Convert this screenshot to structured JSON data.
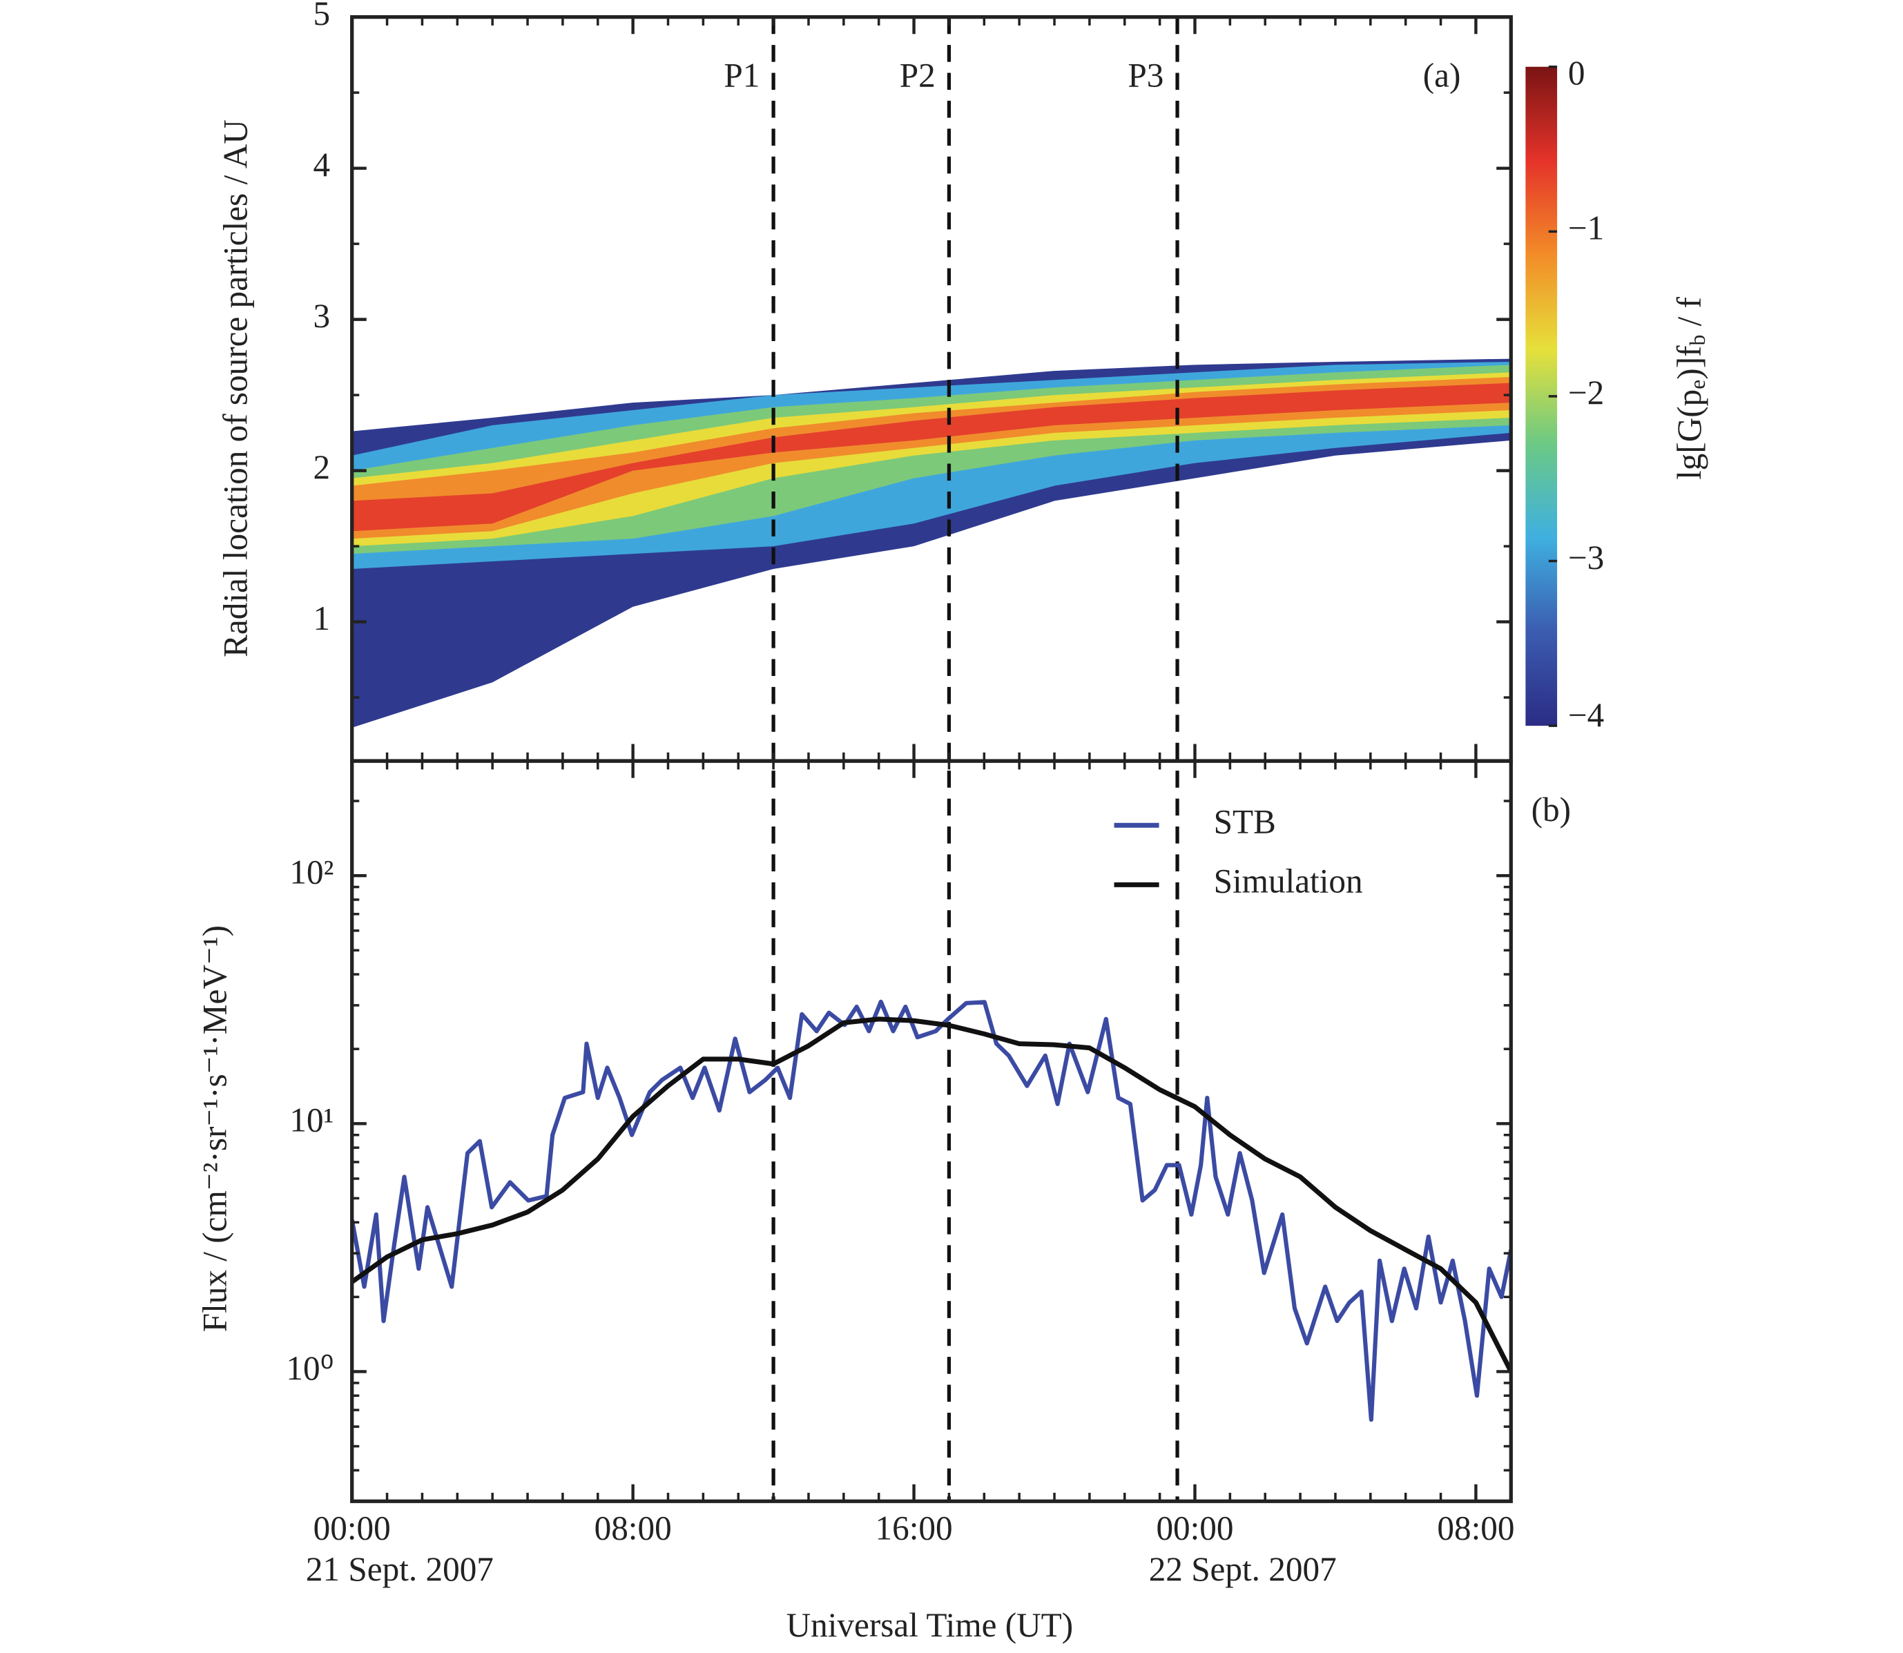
{
  "chart_data": [
    {
      "type": "contour",
      "panel_label": "(a)",
      "ylabel": "Radial location of source particles / AU",
      "xlim": [
        0,
        33
      ],
      "ylim": [
        0.08,
        5
      ],
      "yticks": [
        1,
        2,
        3,
        4,
        5
      ],
      "x": [
        0,
        4,
        8,
        12,
        16,
        20,
        24,
        28,
        33
      ],
      "layers": [
        {
          "level": -4,
          "color": "#2f3a8f",
          "upper": [
            2.26,
            2.35,
            2.45,
            2.5,
            2.58,
            2.66,
            2.7,
            2.72,
            2.74
          ],
          "lower": [
            0.3,
            0.6,
            1.1,
            1.35,
            1.5,
            1.8,
            1.95,
            2.1,
            2.2
          ]
        },
        {
          "level": -3,
          "color": "#3fa6dc",
          "upper": [
            2.1,
            2.3,
            2.4,
            2.5,
            2.55,
            2.6,
            2.65,
            2.7,
            2.72
          ],
          "lower": [
            1.35,
            1.4,
            1.45,
            1.5,
            1.65,
            1.9,
            2.05,
            2.15,
            2.25
          ]
        },
        {
          "level": -2,
          "color": "#7cc97a",
          "upper": [
            2.0,
            2.15,
            2.3,
            2.42,
            2.48,
            2.55,
            2.6,
            2.65,
            2.7
          ],
          "lower": [
            1.45,
            1.5,
            1.55,
            1.7,
            1.95,
            2.1,
            2.2,
            2.25,
            2.3
          ]
        },
        {
          "level": -1.5,
          "color": "#e8dc3a",
          "upper": [
            1.95,
            2.05,
            2.2,
            2.35,
            2.42,
            2.5,
            2.55,
            2.6,
            2.65
          ],
          "lower": [
            1.5,
            1.55,
            1.7,
            1.95,
            2.1,
            2.2,
            2.25,
            2.3,
            2.35
          ]
        },
        {
          "level": -1,
          "color": "#f08c2c",
          "upper": [
            1.9,
            2.0,
            2.12,
            2.28,
            2.38,
            2.45,
            2.52,
            2.57,
            2.62
          ],
          "lower": [
            1.55,
            1.6,
            1.85,
            2.05,
            2.15,
            2.25,
            2.3,
            2.35,
            2.4
          ]
        },
        {
          "level": -0.7,
          "color": "#e4402c",
          "upper": [
            1.8,
            1.85,
            2.05,
            2.22,
            2.33,
            2.42,
            2.48,
            2.53,
            2.58
          ],
          "lower": [
            1.6,
            1.65,
            2.0,
            2.12,
            2.2,
            2.3,
            2.35,
            2.4,
            2.45
          ]
        }
      ],
      "colorbar": {
        "label_parts": [
          "lg[G(p",
          "e",
          ")]f",
          "b",
          " / f"
        ],
        "lim": [
          -4,
          0
        ],
        "ticks": [
          {
            "value": 0,
            "label": "0"
          },
          {
            "value": -1,
            "label": "−1"
          },
          {
            "value": -2,
            "label": "−2"
          },
          {
            "value": -3,
            "label": "−3"
          },
          {
            "value": -4,
            "label": "−4"
          }
        ],
        "colors": [
          "#2b2c85",
          "#3b5cb0",
          "#3fb0e0",
          "#6cc984",
          "#e6e03a",
          "#f28c28",
          "#e5332a",
          "#7a1414"
        ]
      },
      "markers": [
        {
          "label": "P1",
          "x": 12
        },
        {
          "label": "P2",
          "x": 17
        },
        {
          "label": "P3",
          "x": 23.5
        }
      ]
    },
    {
      "type": "line",
      "panel_label": "(b)",
      "ylabel": "Flux / (cm⁻²·sr⁻¹·s⁻¹·MeV⁻¹)",
      "xlabel": "Universal Time (UT)",
      "xlim": [
        0,
        33
      ],
      "xticks": [
        {
          "value": 0,
          "label": "00:00"
        },
        {
          "value": 8,
          "label": "08:00"
        },
        {
          "value": 16,
          "label": "16:00"
        },
        {
          "value": 24,
          "label": "00:00"
        },
        {
          "value": 32,
          "label": "08:00"
        }
      ],
      "date_labels": [
        {
          "value": 0,
          "label": "21 Sept. 2007"
        },
        {
          "value": 24,
          "label": "22 Sept. 2007"
        }
      ],
      "ylim": [
        0.3,
        290
      ],
      "yscale": "log",
      "yticks": [
        {
          "value": 1,
          "label": "10⁰"
        },
        {
          "value": 10,
          "label": "10¹"
        },
        {
          "value": 100,
          "label": "10²"
        }
      ],
      "legend": "upper right",
      "series": [
        {
          "name": "STB",
          "color": "#3b4ba3",
          "x": [
            0,
            0.35,
            0.69,
            0.9,
            1.21,
            1.49,
            1.9,
            2.15,
            2.84,
            3.29,
            3.64,
            3.98,
            4.5,
            5.02,
            5.54,
            5.71,
            6.06,
            6.58,
            6.68,
            7.0,
            7.27,
            7.62,
            7.97,
            8.48,
            8.83,
            9.35,
            9.7,
            10.04,
            10.46,
            10.91,
            11.32,
            11.77,
            12.12,
            12.47,
            12.81,
            13.23,
            13.58,
            14.03,
            14.37,
            14.72,
            15.06,
            15.41,
            15.76,
            16.1,
            16.62,
            16.97,
            17.49,
            18.01,
            18.35,
            18.7,
            19.22,
            19.74,
            20.09,
            20.43,
            20.95,
            21.47,
            21.82,
            22.16,
            22.51,
            22.86,
            23.2,
            23.55,
            23.9,
            24.17,
            24.35,
            24.59,
            24.94,
            25.28,
            25.63,
            25.97,
            26.49,
            26.84,
            27.19,
            27.71,
            28.05,
            28.4,
            28.74,
            29.02,
            29.26,
            29.61,
            29.96,
            30.3,
            30.65,
            31.0,
            31.34,
            31.69,
            32.03,
            32.38,
            32.73,
            33
          ],
          "values": [
            4.1,
            2.2,
            4.3,
            1.6,
            3.3,
            6.1,
            2.6,
            4.6,
            2.2,
            7.6,
            8.5,
            4.6,
            5.8,
            4.9,
            5.1,
            9.0,
            12.7,
            13.4,
            21,
            12.7,
            16.8,
            12.7,
            9.0,
            13.4,
            15,
            16.8,
            12.7,
            16.8,
            11.3,
            22,
            13.4,
            15,
            16.8,
            12.7,
            27.6,
            23.6,
            28,
            25,
            29.6,
            23.6,
            31,
            23.6,
            29.6,
            22.3,
            23.6,
            26.4,
            30.6,
            30.9,
            21,
            18.8,
            14.2,
            18.8,
            12,
            21,
            13.4,
            26.4,
            12.7,
            12,
            4.9,
            5.4,
            6.8,
            6.8,
            4.3,
            6.8,
            12.7,
            6.1,
            4.3,
            7.6,
            4.9,
            2.5,
            4.3,
            1.8,
            1.3,
            2.2,
            1.6,
            1.9,
            2.1,
            0.64,
            2.8,
            1.6,
            2.6,
            1.8,
            3.5,
            1.9,
            2.8,
            1.6,
            0.8,
            2.6,
            2.0,
            3.1
          ]
        },
        {
          "name": "Simulation",
          "color": "#111111",
          "x": [
            0,
            1,
            2,
            3,
            4,
            5,
            6,
            7,
            8,
            9,
            10,
            11,
            12,
            13,
            14,
            15,
            16,
            17,
            18,
            19,
            20,
            21,
            22,
            23,
            24,
            25,
            26,
            27,
            28,
            29,
            30,
            31,
            32,
            33
          ],
          "values": [
            2.3,
            2.9,
            3.4,
            3.6,
            3.9,
            4.4,
            5.4,
            7.2,
            10.7,
            14.2,
            18.2,
            18.2,
            17.4,
            20.6,
            25.5,
            26.4,
            26.0,
            24.9,
            23.0,
            21.0,
            20.8,
            20.2,
            16.8,
            13.7,
            11.7,
            9.0,
            7.2,
            6.1,
            4.6,
            3.7,
            3.1,
            2.6,
            1.9,
            1.0
          ]
        }
      ]
    }
  ]
}
